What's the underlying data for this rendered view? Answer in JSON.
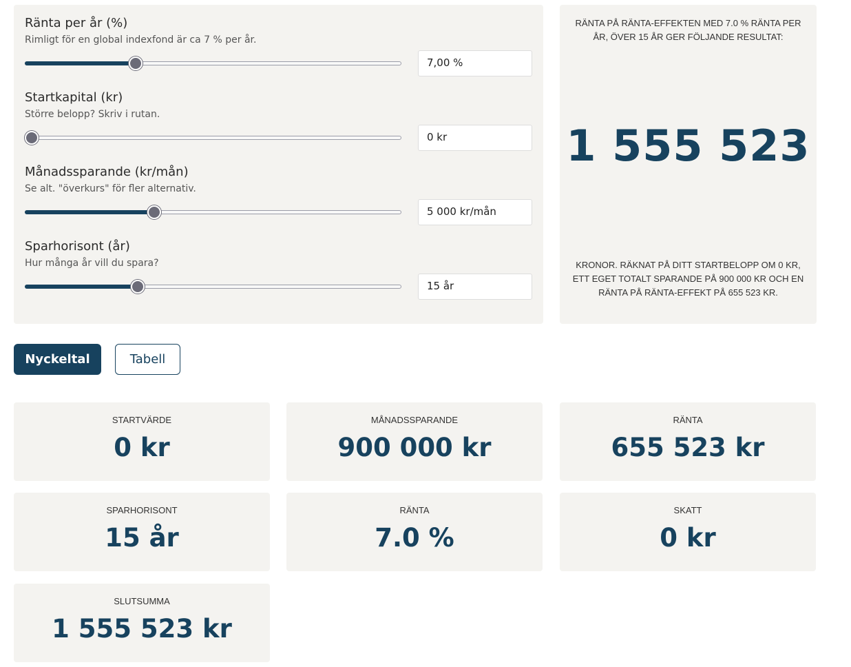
{
  "inputs": [
    {
      "label": "Ränta per år (%)",
      "hint": "Rimligt för en global indexfond är ca 7 % per år.",
      "value": "7,00 %",
      "slider_fraction": 0.287
    },
    {
      "label": "Startkapital (kr)",
      "hint": "Större belopp? Skriv i rutan.",
      "value": "0 kr",
      "slider_fraction": 0.0
    },
    {
      "label": "Månadssparande (kr/mån)",
      "hint": "Se alt. \"överkurs\" för fler alternativ.",
      "value": "5 000 kr/mån",
      "slider_fraction": 0.337
    },
    {
      "label": "Sparhorisont (år)",
      "hint": "Hur många år vill du spara?",
      "value": "15 år",
      "slider_fraction": 0.292
    }
  ],
  "result": {
    "heading": "Ränta på ränta-effekten med 7.0 % ränta per år, över 15 år ger följande resultat:",
    "amount": "1 555 523",
    "footer": "kronor. Räknat på ditt startbelopp om 0 kr, ett eget totalt sparande på 900 000 kr och en ränta på ränta-effekt på 655 523 kr."
  },
  "tabs": {
    "active": "Nyckeltal",
    "other": "Tabell"
  },
  "stats": [
    {
      "label": "Startvärde",
      "value": "0 kr"
    },
    {
      "label": "Månadssparande",
      "value": "900 000 kr"
    },
    {
      "label": "Ränta",
      "value": "655 523 kr"
    },
    {
      "label": "Sparhorisont",
      "value": "15 år"
    },
    {
      "label": "Ränta",
      "value": "7.0 %"
    },
    {
      "label": "Skatt",
      "value": "0 kr"
    },
    {
      "label": "Slutsumma",
      "value": "1 555 523 kr"
    }
  ],
  "colors": {
    "accent": "#17425e",
    "panel_bg": "#f4f3f0",
    "slider_thumb": "#6b6b78"
  }
}
